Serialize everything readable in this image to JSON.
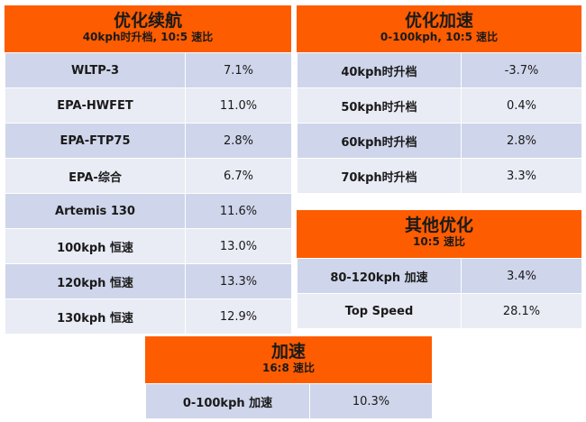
{
  "range_panel": {
    "title": "优化续航",
    "subtitle": "40kph时升档, 10:5 速比",
    "rows": [
      {
        "label": "WLTP-3",
        "value": "7.1%"
      },
      {
        "label": "EPA-HWFET",
        "value": "11.0%"
      },
      {
        "label": "EPA-FTP75",
        "value": "2.8%"
      },
      {
        "label": "EPA-综合",
        "value": "6.7%"
      },
      {
        "label": "Artemis 130",
        "value": "11.6%"
      },
      {
        "label": "100kph 恒速",
        "value": "13.0%"
      },
      {
        "label": "120kph 恒速",
        "value": "13.3%"
      },
      {
        "label": "130kph 恒速",
        "value": "12.9%"
      }
    ]
  },
  "accel_panel": {
    "title": "优化加速",
    "subtitle": "0-100kph, 10:5 速比",
    "rows": [
      {
        "label": "40kph时升档",
        "value": "-3.7%"
      },
      {
        "label": "50kph时升档",
        "value": "0.4%"
      },
      {
        "label": "60kph时升档",
        "value": "2.8%"
      },
      {
        "label": "70kph时升档",
        "value": "3.3%"
      }
    ]
  },
  "other_panel": {
    "title": "其他优化",
    "subtitle": "10:5 速比",
    "rows": [
      {
        "label": "80-120kph 加速",
        "value": "3.4%"
      },
      {
        "label": "Top Speed",
        "value": "28.1%"
      }
    ]
  },
  "speed_panel": {
    "title": "加速",
    "subtitle": "16:8 速比",
    "rows": [
      {
        "label": "0-100kph 加速",
        "value": "10.3%"
      }
    ]
  }
}
